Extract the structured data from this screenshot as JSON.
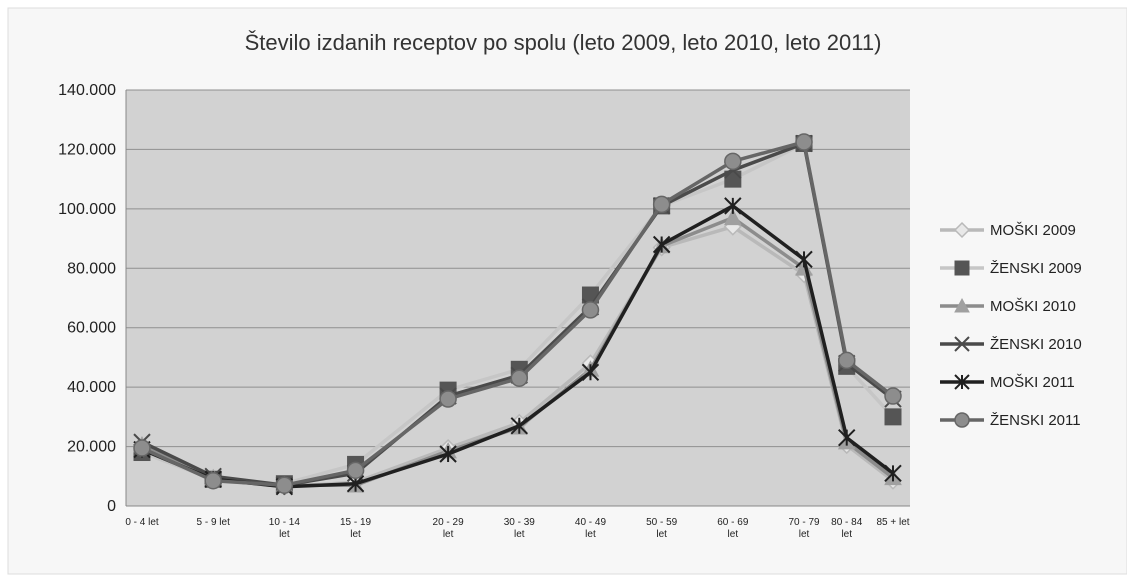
{
  "chart_data": {
    "type": "line",
    "title": "Število izdanih receptov po spolu (leto 2009, leto 2010, leto 2011)",
    "xlabel": "",
    "ylabel": "",
    "categories": [
      [
        "0 - 4 let"
      ],
      [
        "5 - 9 let"
      ],
      [
        "10 - 14",
        "let"
      ],
      [
        "15 - 19",
        "let"
      ],
      [
        "20 - 29",
        "let"
      ],
      [
        "30 - 39",
        "let"
      ],
      [
        "40 - 49",
        "let"
      ],
      [
        "50 - 59",
        "let"
      ],
      [
        "60 - 69",
        "let"
      ],
      [
        "70 - 79",
        "let"
      ],
      [
        "80 - 84",
        "let"
      ],
      [
        "85 + let"
      ]
    ],
    "x_spacing": [
      0,
      1,
      2,
      3,
      4.3,
      5.3,
      6.3,
      7.3,
      8.3,
      9.3,
      9.9,
      10.55
    ],
    "ylim": [
      0,
      140000
    ],
    "yticks": [
      "0",
      "20.000",
      "40.000",
      "60.000",
      "80.000",
      "100.000",
      "120.000",
      "140.000"
    ],
    "ytick_values": [
      0,
      20000,
      40000,
      60000,
      80000,
      100000,
      120000,
      140000
    ],
    "grid": true,
    "legend_position": "right",
    "series": [
      {
        "name": "MOŠKI 2009",
        "marker": "diamond",
        "color": "#b9b9b9",
        "fill": "#e8e8e8",
        "values": [
          20000,
          9000,
          6500,
          8000,
          19500,
          28000,
          48000,
          87000,
          94000,
          78000,
          20500,
          8500
        ]
      },
      {
        "name": "ŽENSKI 2009",
        "marker": "square",
        "color": "#c6c6c6",
        "fill": "#555555",
        "values": [
          18000,
          9000,
          7500,
          14000,
          39000,
          46000,
          71000,
          101000,
          110000,
          122000,
          47000,
          30000
        ]
      },
      {
        "name": "MOŠKI 2010",
        "marker": "triangle",
        "color": "#8c8c8c",
        "fill": "#a0a0a0",
        "values": [
          20500,
          9500,
          7000,
          7000,
          18500,
          26500,
          46000,
          87500,
          97000,
          80000,
          21500,
          9500
        ]
      },
      {
        "name": "ŽENSKI 2010",
        "marker": "x",
        "color": "#4a4a4a",
        "fill": "#4a4a4a",
        "values": [
          21500,
          10000,
          7000,
          11000,
          37000,
          44000,
          67000,
          101000,
          113000,
          122000,
          48000,
          36000
        ]
      },
      {
        "name": "MOŠKI 2011",
        "marker": "star",
        "color": "#202020",
        "fill": "#202020",
        "values": [
          19000,
          9000,
          6500,
          7500,
          17500,
          27000,
          45000,
          88000,
          101000,
          83000,
          23000,
          11000
        ]
      },
      {
        "name": "ŽENSKI 2011",
        "marker": "circle",
        "color": "#666666",
        "fill": "#8d8d8d",
        "values": [
          19500,
          8500,
          7000,
          12000,
          36000,
          43000,
          66000,
          101500,
          116000,
          122500,
          49000,
          37000
        ]
      }
    ]
  }
}
